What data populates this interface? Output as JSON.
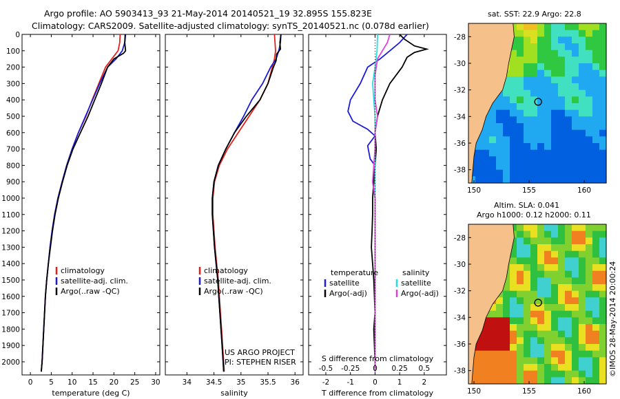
{
  "header": {
    "line1": "Argo profile: AO 5903413_93 21-May-2014 20140521_19 32.895S 155.823E",
    "line2": "Climatology: CARS2009. Satellite-adjusted climatology: synTS_20140521.nc (0.078d earlier)"
  },
  "colors": {
    "climatology": "#e0201a",
    "satellite": "#1a1ad8",
    "argo": "#000000",
    "salinity_sat": "#22e0e0",
    "salinity_argo": "#e040e0"
  },
  "chart_data": [
    {
      "type": "line",
      "id": "temperature",
      "xlabel": "temperature (deg C)",
      "ylabel": "",
      "xlim": [
        -2,
        31
      ],
      "ylim": [
        2080,
        0
      ],
      "xticks": [
        0,
        5,
        10,
        15,
        20,
        25,
        30
      ],
      "yticks": [
        0,
        100,
        200,
        300,
        400,
        500,
        600,
        700,
        800,
        900,
        1000,
        1100,
        1200,
        1300,
        1400,
        1500,
        1600,
        1700,
        1800,
        1900,
        2000
      ],
      "legend": [
        "climatology",
        "satellite-adj. clim.",
        "Argo(..raw -QC)"
      ],
      "series": [
        {
          "name": "climatology",
          "color": "#e0201a",
          "points": [
            [
              21.5,
              0
            ],
            [
              21.4,
              50
            ],
            [
              21.0,
              100
            ],
            [
              19.5,
              150
            ],
            [
              18.0,
              200
            ],
            [
              16.4,
              300
            ],
            [
              14.8,
              400
            ],
            [
              13.3,
              500
            ],
            [
              11.5,
              600
            ],
            [
              10.0,
              700
            ],
            [
              8.7,
              800
            ],
            [
              7.6,
              900
            ],
            [
              6.6,
              1000
            ],
            [
              5.8,
              1100
            ],
            [
              5.2,
              1200
            ],
            [
              4.7,
              1300
            ],
            [
              4.3,
              1400
            ],
            [
              3.9,
              1500
            ],
            [
              3.6,
              1600
            ],
            [
              3.4,
              1700
            ],
            [
              3.2,
              1800
            ],
            [
              3.0,
              1900
            ],
            [
              2.8,
              2000
            ],
            [
              2.6,
              2060
            ]
          ]
        },
        {
          "name": "satellite-adj. clim.",
          "color": "#1a1ad8",
          "points": [
            [
              22.8,
              0
            ],
            [
              22.6,
              50
            ],
            [
              22.0,
              100
            ],
            [
              20.5,
              150
            ],
            [
              18.5,
              200
            ],
            [
              16.6,
              300
            ],
            [
              14.9,
              400
            ],
            [
              13.2,
              500
            ],
            [
              11.5,
              600
            ],
            [
              10.0,
              700
            ],
            [
              8.7,
              800
            ],
            [
              7.6,
              900
            ],
            [
              6.6,
              1000
            ],
            [
              5.8,
              1100
            ],
            [
              5.2,
              1200
            ],
            [
              4.7,
              1300
            ],
            [
              4.3,
              1400
            ],
            [
              3.9,
              1500
            ],
            [
              3.6,
              1600
            ],
            [
              3.4,
              1700
            ],
            [
              3.2,
              1800
            ],
            [
              3.0,
              1900
            ],
            [
              2.8,
              2000
            ],
            [
              2.6,
              2060
            ]
          ]
        },
        {
          "name": "Argo(..raw -QC)",
          "color": "#000000",
          "points": [
            [
              22.7,
              0
            ],
            [
              22.6,
              50
            ],
            [
              22.8,
              100
            ],
            [
              22.3,
              115
            ],
            [
              20.0,
              150
            ],
            [
              18.5,
              200
            ],
            [
              17.0,
              300
            ],
            [
              15.4,
              400
            ],
            [
              13.8,
              500
            ],
            [
              12.0,
              600
            ],
            [
              10.2,
              700
            ],
            [
              8.8,
              800
            ],
            [
              7.7,
              900
            ],
            [
              6.7,
              1000
            ],
            [
              5.9,
              1100
            ],
            [
              5.3,
              1200
            ],
            [
              4.8,
              1300
            ],
            [
              4.3,
              1400
            ],
            [
              3.9,
              1500
            ],
            [
              3.6,
              1600
            ],
            [
              3.4,
              1700
            ],
            [
              3.2,
              1800
            ],
            [
              3.0,
              1900
            ],
            [
              2.8,
              2000
            ],
            [
              2.6,
              2060
            ]
          ]
        }
      ]
    },
    {
      "type": "line",
      "id": "salinity",
      "xlabel": "salinity",
      "ylabel": "",
      "xlim": [
        33.6,
        36.15
      ],
      "ylim": [
        2080,
        0
      ],
      "xticks": [
        34,
        34.5,
        35,
        35.5,
        36
      ],
      "legend": [
        "climatology",
        "satellite-adj. clim.",
        "Argo(..raw -QC)"
      ],
      "annotation": [
        "US ARGO PROJECT",
        "PI: STEPHEN RISER"
      ],
      "series": [
        {
          "name": "climatology",
          "color": "#e0201a",
          "points": [
            [
              35.62,
              0
            ],
            [
              35.63,
              50
            ],
            [
              35.64,
              100
            ],
            [
              35.62,
              150
            ],
            [
              35.58,
              200
            ],
            [
              35.5,
              300
            ],
            [
              35.35,
              400
            ],
            [
              35.15,
              500
            ],
            [
              34.95,
              600
            ],
            [
              34.75,
              700
            ],
            [
              34.6,
              800
            ],
            [
              34.51,
              900
            ],
            [
              34.48,
              1000
            ],
            [
              34.48,
              1100
            ],
            [
              34.5,
              1200
            ],
            [
              34.52,
              1300
            ],
            [
              34.55,
              1400
            ],
            [
              34.58,
              1500
            ],
            [
              34.6,
              1600
            ],
            [
              34.62,
              1700
            ],
            [
              34.64,
              1800
            ],
            [
              34.66,
              1900
            ],
            [
              34.68,
              2000
            ],
            [
              34.69,
              2060
            ]
          ]
        },
        {
          "name": "satellite-adj. clim.",
          "color": "#1a1ad8",
          "points": [
            [
              35.74,
              0
            ],
            [
              35.73,
              50
            ],
            [
              35.7,
              100
            ],
            [
              35.65,
              150
            ],
            [
              35.55,
              200
            ],
            [
              35.4,
              300
            ],
            [
              35.2,
              400
            ],
            [
              35.05,
              500
            ],
            [
              34.88,
              600
            ],
            [
              34.72,
              700
            ],
            [
              34.58,
              800
            ],
            [
              34.5,
              900
            ],
            [
              34.47,
              1000
            ],
            [
              34.47,
              1100
            ],
            [
              34.49,
              1200
            ],
            [
              34.51,
              1300
            ],
            [
              34.54,
              1400
            ],
            [
              34.57,
              1500
            ],
            [
              34.59,
              1600
            ],
            [
              34.61,
              1700
            ],
            [
              34.63,
              1800
            ],
            [
              34.65,
              1900
            ],
            [
              34.67,
              2000
            ],
            [
              34.68,
              2060
            ]
          ]
        },
        {
          "name": "Argo(..raw -QC)",
          "color": "#000000",
          "points": [
            [
              35.74,
              0
            ],
            [
              35.72,
              50
            ],
            [
              35.73,
              90
            ],
            [
              35.66,
              120
            ],
            [
              35.65,
              160
            ],
            [
              35.6,
              200
            ],
            [
              35.5,
              300
            ],
            [
              35.35,
              400
            ],
            [
              35.1,
              500
            ],
            [
              34.88,
              600
            ],
            [
              34.72,
              700
            ],
            [
              34.58,
              800
            ],
            [
              34.5,
              900
            ],
            [
              34.47,
              1000
            ],
            [
              34.47,
              1100
            ],
            [
              34.49,
              1200
            ],
            [
              34.51,
              1300
            ],
            [
              34.54,
              1400
            ],
            [
              34.57,
              1500
            ],
            [
              34.59,
              1600
            ],
            [
              34.61,
              1700
            ],
            [
              34.63,
              1800
            ],
            [
              34.65,
              1900
            ],
            [
              34.67,
              2000
            ],
            [
              34.68,
              2060
            ]
          ]
        }
      ]
    },
    {
      "type": "line",
      "id": "difference",
      "xlabel": "T difference from climatology",
      "top_label": "S difference from climatology",
      "ylabel": "",
      "xlim": [
        -2.7,
        2.9
      ],
      "ylim": [
        2080,
        0
      ],
      "xticks": [
        -2,
        -1,
        0,
        1,
        2
      ],
      "s_ticks": [
        "-0.5",
        "-0.25",
        "0",
        "0.25",
        "0.5"
      ],
      "s_ticks_x": [
        -2,
        -1,
        0,
        1,
        2
      ],
      "legend_temperature_title": "temperature",
      "legend_salinity_title": "salinity",
      "legend": [
        "satellite",
        "Argo(-adj)",
        "satellite",
        "Argo(-adj)"
      ],
      "series": [
        {
          "name": "temperature satellite",
          "color": "#1a1ad8",
          "points": [
            [
              1.3,
              0
            ],
            [
              1.0,
              50
            ],
            [
              0.6,
              100
            ],
            [
              0.2,
              150
            ],
            [
              -0.3,
              200
            ],
            [
              -0.6,
              300
            ],
            [
              -1.0,
              400
            ],
            [
              -1.1,
              470
            ],
            [
              -0.9,
              530
            ],
            [
              -0.3,
              580
            ],
            [
              0.0,
              620
            ],
            [
              -0.3,
              680
            ],
            [
              -0.2,
              760
            ],
            [
              0.0,
              800
            ],
            [
              -0.1,
              900
            ],
            [
              0.0,
              1000
            ],
            [
              0.0,
              1500
            ],
            [
              0.0,
              2060
            ]
          ]
        },
        {
          "name": "temperature Argo(-adj)",
          "color": "#000000",
          "points": [
            [
              1.0,
              0
            ],
            [
              1.2,
              30
            ],
            [
              1.6,
              70
            ],
            [
              2.1,
              90
            ],
            [
              1.6,
              110
            ],
            [
              1.3,
              140
            ],
            [
              1.1,
              200
            ],
            [
              0.6,
              300
            ],
            [
              0.3,
              400
            ],
            [
              0.1,
              500
            ],
            [
              0.0,
              600
            ],
            [
              0.05,
              700
            ],
            [
              0.0,
              800
            ],
            [
              -0.05,
              900
            ],
            [
              -0.1,
              1000
            ],
            [
              -0.1,
              1100
            ],
            [
              -0.12,
              1200
            ],
            [
              -0.15,
              1300
            ],
            [
              -0.1,
              1400
            ],
            [
              -0.05,
              1500
            ],
            [
              0.0,
              1700
            ],
            [
              -0.05,
              1800
            ],
            [
              0.0,
              2000
            ],
            [
              0.0,
              2060
            ]
          ]
        },
        {
          "name": "salinity satellite",
          "color": "#22e0e0",
          "points": [
            [
              0.1,
              0
            ],
            [
              0.08,
              100
            ],
            [
              0.0,
              200
            ],
            [
              -0.1,
              300
            ],
            [
              -0.05,
              400
            ],
            [
              0.0,
              500
            ],
            [
              0.0,
              600
            ],
            [
              0.0,
              2060
            ]
          ]
        },
        {
          "name": "salinity Argo(-adj)",
          "color": "#e040e0",
          "points": [
            [
              0.6,
              0
            ],
            [
              0.5,
              50
            ],
            [
              0.3,
              100
            ],
            [
              0.1,
              150
            ],
            [
              0.0,
              250
            ],
            [
              0.0,
              400
            ],
            [
              0.1,
              500
            ],
            [
              0.0,
              600
            ],
            [
              0.0,
              700
            ],
            [
              -0.05,
              800
            ],
            [
              -0.1,
              900
            ],
            [
              0.0,
              1000
            ],
            [
              0.0,
              1200
            ],
            [
              0.0,
              2060
            ]
          ]
        }
      ]
    },
    {
      "type": "heatmap",
      "id": "sst-map",
      "title": "sat. SST: 22.9  Argo: 22.8",
      "xlim": [
        149.5,
        162
      ],
      "ylim": [
        -39,
        -27
      ],
      "xticks": [
        150,
        155,
        160
      ],
      "yticks": [
        -28,
        -30,
        -32,
        -34,
        -36,
        -38
      ],
      "marker": {
        "lon": 155.823,
        "lat": -32.895
      }
    },
    {
      "type": "heatmap",
      "id": "sla-map",
      "title_line1": "Altim. SLA: 0.041",
      "title_line2": "Argo h1000: 0.12  h2000: 0.11",
      "xlim": [
        149.5,
        162
      ],
      "ylim": [
        -39,
        -27
      ],
      "xticks": [
        150,
        155,
        160
      ],
      "yticks": [
        -28,
        -30,
        -32,
        -34,
        -36,
        -38
      ],
      "marker": {
        "lon": 155.823,
        "lat": -32.895
      }
    }
  ],
  "credit": "©IMOS 28-May-2014 20:00:24"
}
